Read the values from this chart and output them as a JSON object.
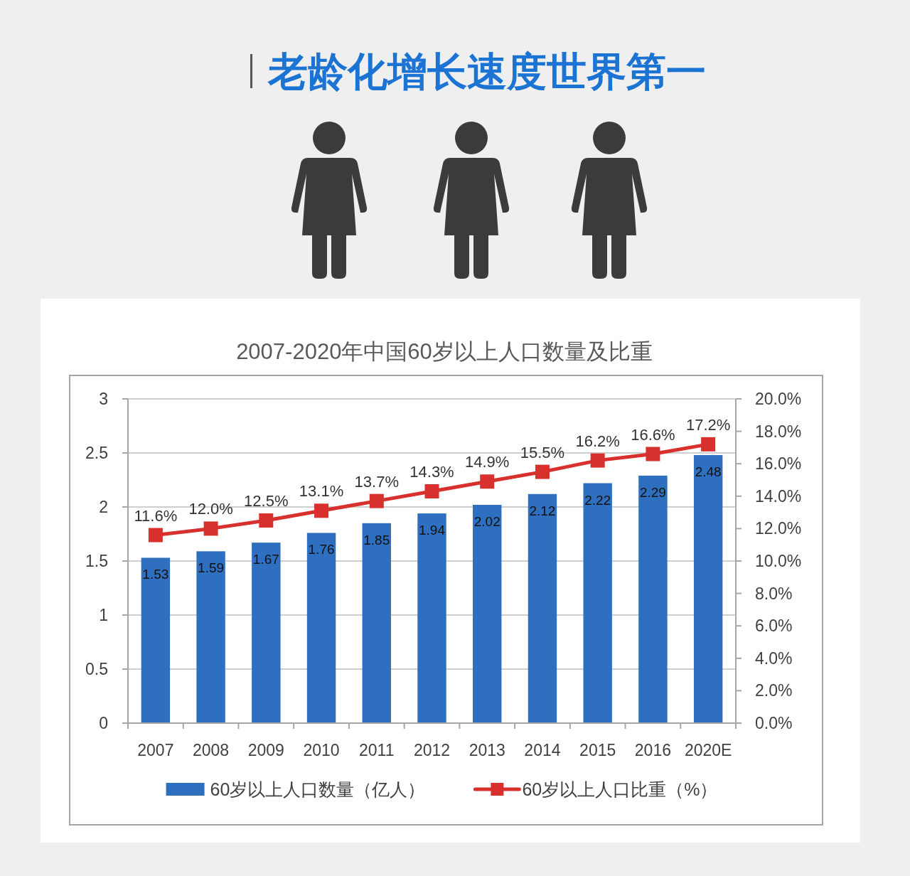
{
  "chart_data": {
    "type": "bar",
    "title": "老龄化增长速度世界第一",
    "subtitle": "2007-2020年中国60岁以上人口数量及比重",
    "categories": [
      "2007",
      "2008",
      "2009",
      "2010",
      "2011",
      "2012",
      "2013",
      "2014",
      "2015",
      "2016",
      "2020E"
    ],
    "series": [
      {
        "name": "60岁以上人口数量（亿人）",
        "color": "#2f6fbf",
        "values": [
          1.53,
          1.59,
          1.67,
          1.76,
          1.85,
          1.94,
          2.02,
          2.12,
          2.22,
          2.29,
          2.48
        ],
        "value_labels": [
          "1.53",
          "1.59",
          "1.67",
          "1.76",
          "1.85",
          "1.94",
          "2.02",
          "2.12",
          "2.22",
          "2.29",
          "2.48"
        ]
      },
      {
        "name": "60岁以上人口比重（%）",
        "type": "line",
        "axis": "y2",
        "color": "#d8302c",
        "values": [
          11.6,
          12.0,
          12.5,
          13.1,
          13.7,
          14.3,
          14.9,
          15.5,
          16.2,
          16.6,
          17.2
        ],
        "value_labels": [
          "11.6%",
          "12.0%",
          "12.5%",
          "13.1%",
          "13.7%",
          "14.3%",
          "14.9%",
          "15.5%",
          "16.2%",
          "16.6%",
          "17.2%"
        ]
      }
    ],
    "ylim": [
      0,
      3
    ],
    "yticks": [
      0,
      0.5,
      1,
      1.5,
      2,
      2.5,
      3
    ],
    "y2lim": [
      0,
      20
    ],
    "y2ticks": [
      {
        "value": 0,
        "label": "0.0%"
      },
      {
        "value": 2,
        "label": "2.0%"
      },
      {
        "value": 4,
        "label": "4.0%"
      },
      {
        "value": 6,
        "label": "6.0%"
      },
      {
        "value": 8,
        "label": "8.0%"
      },
      {
        "value": 10,
        "label": "10.0%"
      },
      {
        "value": 12,
        "label": "12.0%"
      },
      {
        "value": 14,
        "label": "14.0%"
      },
      {
        "value": 16,
        "label": "16.0%"
      },
      {
        "value": 18,
        "label": "18.0%"
      },
      {
        "value": 20,
        "label": "20.0%"
      }
    ],
    "grid": "y",
    "legend": "bottom",
    "marker": "square",
    "line_style": "solid"
  }
}
